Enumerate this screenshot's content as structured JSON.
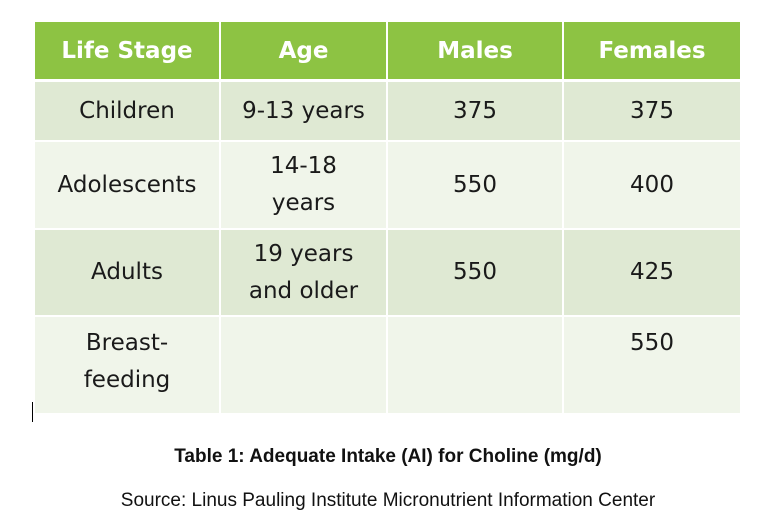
{
  "table": {
    "headers": [
      "Life Stage",
      "Age",
      "Males",
      "Females"
    ],
    "rows": [
      [
        "Children",
        "9-13 years",
        "375",
        "375"
      ],
      [
        "Adolescents",
        "14-18 years",
        "550",
        "400"
      ],
      [
        "Adults",
        "19 years and older",
        "550",
        "425"
      ],
      [
        "Breast-feeding",
        "",
        "",
        "550"
      ]
    ],
    "colors": {
      "header_bg": "#8dc343",
      "header_text": "#ffffff",
      "row_shade_dark": "#dfe9d3",
      "row_shade_light": "#f0f5ea"
    }
  },
  "caption": "Table 1: Adequate Intake (AI) for Choline (mg/d)",
  "source": "Source: Linus Pauling Institute Micronutrient Information Center"
}
